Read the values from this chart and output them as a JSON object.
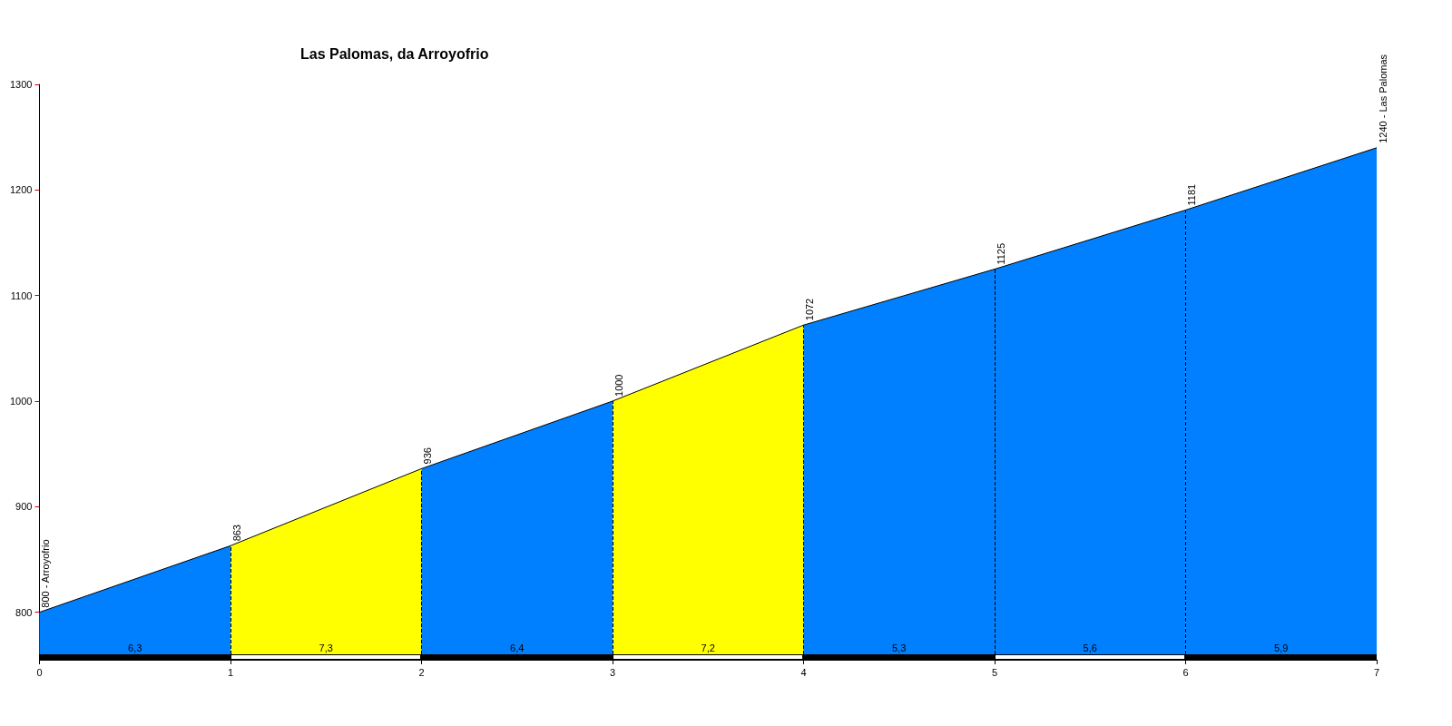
{
  "chart_data": {
    "type": "area",
    "title": "Las Palomas, da Arroyofrio",
    "xlim": [
      0,
      7
    ],
    "xticks": [
      0,
      1,
      2,
      3,
      4,
      5,
      6,
      7
    ],
    "ylim": [
      755,
      1300
    ],
    "yticks": [
      800,
      900,
      1000,
      1100,
      1200,
      1300
    ],
    "series": [
      {
        "color": "#0080ff",
        "x": [
          0,
          1
        ],
        "values": [
          800,
          863
        ],
        "value_labels": [
          "800 - Arroyofrio",
          "863"
        ]
      },
      {
        "color": "#ffff00",
        "x": [
          1,
          2
        ],
        "values": [
          863,
          936
        ],
        "value_labels": [
          null,
          "936"
        ]
      },
      {
        "color": "#0080ff",
        "x": [
          2,
          3
        ],
        "values": [
          936,
          1000
        ],
        "value_labels": [
          null,
          "1000"
        ]
      },
      {
        "color": "#ffff00",
        "x": [
          3,
          4
        ],
        "values": [
          1000,
          1072
        ],
        "value_labels": [
          null,
          "1072"
        ]
      },
      {
        "color": "#0080ff",
        "x": [
          4,
          5
        ],
        "values": [
          1072,
          1125
        ],
        "value_labels": [
          null,
          "1125"
        ]
      },
      {
        "color": "#0080ff",
        "x": [
          5,
          6
        ],
        "values": [
          1125,
          1181
        ],
        "value_labels": [
          null,
          "1181"
        ]
      },
      {
        "color": "#0080ff",
        "x": [
          6,
          7
        ],
        "values": [
          1181,
          1240
        ],
        "value_labels": [
          null,
          "1240 - Las Palomas"
        ]
      }
    ],
    "ref_lines": [
      {
        "axis": "x",
        "value": 1,
        "line_style": "dashed"
      },
      {
        "axis": "x",
        "value": 2,
        "line_style": "dashed"
      },
      {
        "axis": "x",
        "value": 3,
        "line_style": "dashed"
      },
      {
        "axis": "x",
        "value": 4,
        "line_style": "dashed"
      },
      {
        "axis": "x",
        "value": 5,
        "line_style": "dashed"
      },
      {
        "axis": "x",
        "value": 6,
        "line_style": "dashed"
      }
    ],
    "annotations": [
      "6,3",
      "7,3",
      "6,4",
      "7,2",
      "5,3",
      "5,6",
      "5,9"
    ]
  }
}
